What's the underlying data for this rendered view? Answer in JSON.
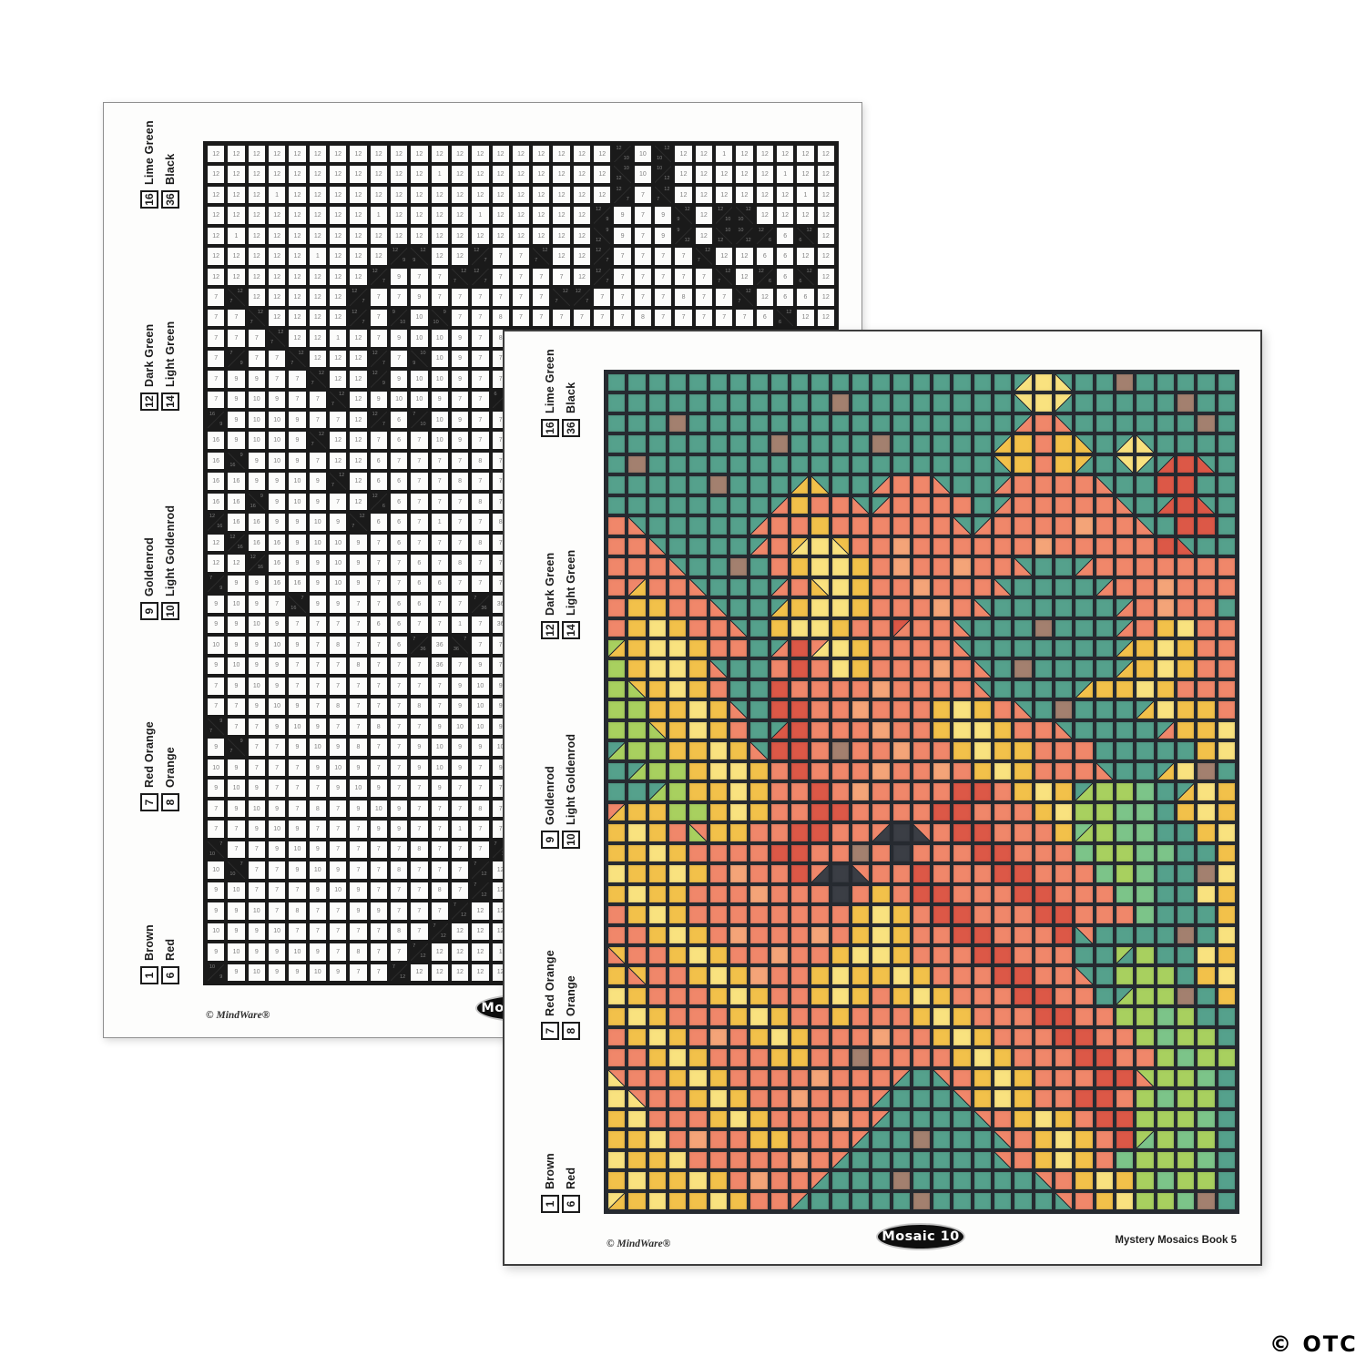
{
  "footer": {
    "copyright": "© MindWare®",
    "badge": "Mosaic 10",
    "book_title": "Mystery Mosaics Book 5"
  },
  "watermark": {
    "text": "© OTC"
  },
  "legend": {
    "groups": [
      {
        "items": [
          {
            "num": "16",
            "label": "Lime Green"
          },
          {
            "num": "36",
            "label": "Black"
          }
        ]
      },
      {
        "items": [
          {
            "num": "12",
            "label": "Dark Green"
          },
          {
            "num": "14",
            "label": "Light Green"
          }
        ]
      },
      {
        "items": [
          {
            "num": "9",
            "label": "Goldenrod"
          },
          {
            "num": "10",
            "label": "Light Goldenrod"
          }
        ]
      },
      {
        "items": [
          {
            "num": "7",
            "label": "Red Orange"
          },
          {
            "num": "8",
            "label": "Orange"
          }
        ]
      },
      {
        "items": [
          {
            "num": "1",
            "label": "Brown"
          },
          {
            "num": "6",
            "label": "Red"
          }
        ]
      }
    ]
  },
  "palette": {
    "1": "#a3806f",
    "6": "#dc5847",
    "7": "#f0876a",
    "8": "#f4a478",
    "9": "#f2c14a",
    "10": "#f9e27f",
    "12": "#55a18c",
    "14": "#7cc489",
    "16": "#a8d05f",
    "36": "#3b3e45"
  },
  "style": {
    "front_gridline": "#262a30",
    "back_gridline": "#1a1a1a",
    "number_color": "#828282"
  },
  "grid": {
    "cols": 31,
    "rows": [
      "12 12 12 12 12 12 12 12 12 12 12 12 12 12 12 12 12 12 12 12 12/10 10 10%12 12 12 1 12 12 12 12 12",
      "12 12 12 12 12 12 12 12 12 12 12 1 12 12 12 12 12 12 12 12 12%10 10 10/12 12 12 12 12 12 1 12 12",
      "12 12 12 1 12 12 12 12 12 12 12 12 12 12 12 12 12 12 12 12 12/7 7 7%12 12 12 12 12 12 12 1 12",
      "12 12 12 12 12 12 12 12 1 12 12 12 12 1 12 12 12 12 12 12/9 9 7 9 9%12 12 12/10 10%12 12 12 12 12",
      "12 1 12 12 12 12 12 12 12 12 12 12 12 12 12 12 12 12 12 12%9 9 7 9 9/12 12 12%10 10/12 12/6 6 6%12 12",
      "12 12 12 12 12 1 12 12 12 12/9 9%12 12 12 12/7 7 7 7%12 12 12 12/7 7 7 7 7 7%12 12 12 6 6 12 12",
      "12 12 12 12 12 12 12 12 12/7 9 7 7 7%12 12/7 7 7 7 7 12 12/7 7 7 7 7 7 7%12 12 12/6 6 6%12",
      "7 7%12 12 12 12 12 12 12/7 7 7 9 7 7 7 7 7 7 7%12 12/7 7 7 7 7 8 7 7 7%12 12 6 6 12",
      "7 7 7%12 12 12 12 12 12/7 7 9/10 10 10%9 7 7 8 7 7 7 7 7 7 8 7 7 7 7 7 6 6%12 12 12",
      "7 7 7 7%12 12 12 1 12 7 9 10 10 9 7 8 7 7 8 7 7 7%12 12 12 12/7 7 7 7 7 7 7 7",
      "7 7/9 7 7 7%12 12 12 12 12/7 7 9%10 10 9 7 7 8 7 7 7 7%12 12 12 12 12 12/7 7 7 8 7 7 7",
      "7 9 9 7 7 7%12 12 12 12/9 9 10 10 9 7 7 7 8 7 7%12 12 12 12 12 12 12 12/7 7 8 7 7",
      "7 9 10 9 7 7 7%12 12 9 10 10 9 7 7 6/7 7 7 7%12 12 12 12 1 12 12 12 12/7 7 9 10 7 7",
      "16/9 9 10 10 9 7 7 12 12/7 6 7/10 10 9 7 7 7 7 7%12 12 12 12 12 12 12 12 12/9 9 10 9 7 7",
      "16 9 10 10 9 7%12 12 12 7 6 7 10 9 7 7 7 8 7 7%12 12 1 12 12 12 12 12/9 9 10 9 7 7",
      "16 16%9 9 10 9 7 12 12 6 7 7 7 7 8 7 7 7 7 7%12 12 12 12 12 12/9 9 9 10 9 7 7 7",
      "16 16 9 9 10 9 7%12 12 6 6 7 7 8 7 7 7 9 10 9 7 7%12 12 1 12 12 12 12/9 10 9 9 7",
      "16 16 16%9 9 10 9 7 12 12/6 6 7 7 7 8 7 7 9 10 10 9 7 7 7%12 12 12 12 12 12/7 9 9 10",
      "12/16 16 16 9 9 10 9 7%12 6 6 7 1 7 7 8 7 7 9 10 9 9 7 7 7 12 12 12 12 12 9 10",
      "12 12/16 16 16 9 10 10 9 7 6 7 7 7 8 7 7 8 7 9 10 9 7 7 7 7%12 12 12 12/9 10 1 12",
      "12 12 12/16 16 9 9 10 9 7 7 6 7 8 7 7 7 7 6 6 7 9 10 9 12/16 16 16 14 12 12/9 10 9",
      "7/9 9 9 16 16 9 10 9 7 7 6 6 7 7 7 7 6 6 7 7 7 9 10 16 16 14 14 12 9 10 9",
      "9 10 9 7 16%7 9 9 7 7 6 6 7 7 7/36 36 36%7 7 6 6 7 7 7 9 14/16 16 14 14 12 12 9 10",
      "9 9 10 9 7 7 7 7 6 6 7 7 1 7 36 7 7 7 6 6 7 7 7 14 16 16 14 14 12 12 9",
      "10 9 9 10 9 7 8 7 7 6 7/36 36 36%7 7 7 6 7 7 7 6 6 7 7 7 14 16 14 12 12 1 10",
      "9 10 9 9 7 7 7 8 7 7 7 36 7 9 7 6 6 7 7 7 6 6 7 7 7 14 14 12 12 10 9",
      "7 9 10 9 7 7 7 7 7 7 7 7 9 10 9 7 6 6 7 7 7 6 6 7 7 7 14 12 12 12 9",
      "7 7 9 10 9 7 8 7 7 7 8 7 9 10 9 7 7 6 6 7 7 7 6 12%7 12 12 12 12 1 12 10",
      "7%9 7 7 9 10 9 7 7 8 7 7 9 10 10 9 7 7 7 6 6 7 7 7 12 12 16/12 16 12 12 10 9",
      "9 7%9 7 7 9 10 9 8 7 7 9 10 9 9 10 9 7 7 7 6 6 7 7 7%12 12 16 16 16 12 9 10",
      "10 9 7 7 7 9 10 9 7 7 9 10 9 7 9 10 9 7 7 7 6 6 7 7 12 12/16 16 16 1 12 9",
      "9 10 9 7 7 7 9 10 9 7 7 9 7 7 7 9 10 9 7 7 7 6 6 7 7 16 16 14 16 12 12",
      "7 9 10 9 7 8 7 9 10 9 7 7 7 8 7 7 9 10 9 7 7 7 6 6 7 7 16 14 16 16 12",
      "7 7 9 10 9 7 7 7 9 9 7 7 1 7 7 7 7 9 10 9 7 7 7 6 6 7 7 16 14 16 16",
      "10%7 7 7 9 10 9 7 7 7 7 8 7 7 7 7/12 12 12%7 7 9 10 9 7 7 7 6 6 7%16 16 16 14",
      "10 10%7 7 7 9 10 9 7 7 8 7 7 7 7/12 12 12 12 12%7 9 10 9 7 7 6 6 7 16 14 16 16",
      "9 10 7 7 7 9 10 9 7 7 7 8 7 7/12 12 12 12 12 12%7 7 9 10 9 7 6 6 16 16 16 14",
      "9 9 10 7 8 7 7 9 9 7 7 7 7/12 12 12 1 12 12 12 12%7 7 9 10 9 7 6 16/14 16 14 16",
      "10 9 9 10 7 7 7 7 7 8 7 7/12 12 12 12 12 12 12 12 12%7 7 9 10 9 7 14 16 16 16 14",
      "9 10 9 9 10 9 7 8 7 7 7/12 12 12 12 1 12 12 12 12 12 12 12%7 7 9 10 9 16 14 16 16",
      "10/9 9 10 9 9 10 9 7 7 7/12 12 12 12 12 12 1 12 12 12 12 12 12 12%7 7 9 10 16 16 14 1"
    ]
  }
}
